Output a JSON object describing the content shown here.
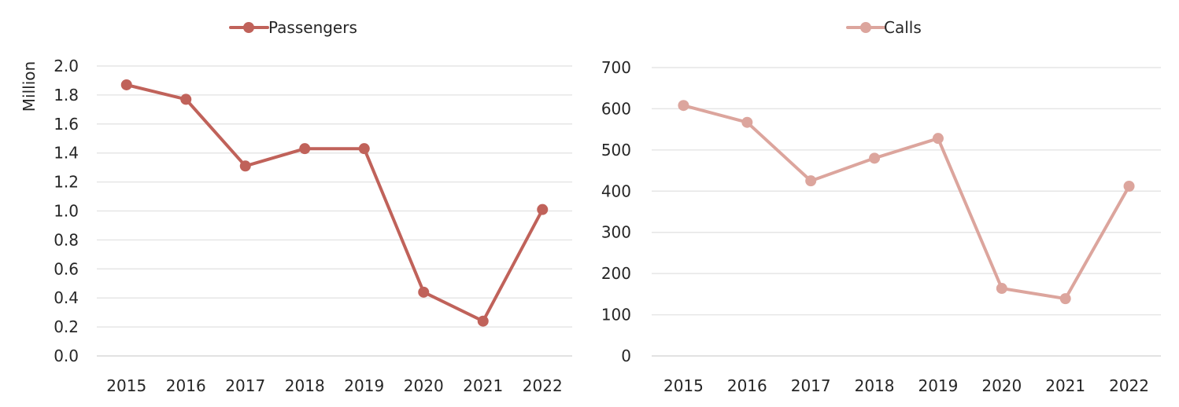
{
  "chart_data": [
    {
      "type": "line",
      "title": "",
      "xlabel": "",
      "ylabel": "Million",
      "categories": [
        "2015",
        "2016",
        "2017",
        "2018",
        "2019",
        "2020",
        "2021",
        "2022"
      ],
      "series": [
        {
          "name": "Passengers",
          "values": [
            1.87,
            1.77,
            1.31,
            1.43,
            1.43,
            0.44,
            0.24,
            1.01
          ]
        }
      ],
      "ylim": [
        0,
        2.0
      ],
      "yticks": [
        "0.0",
        "0.2",
        "0.4",
        "0.6",
        "0.8",
        "1.0",
        "1.2",
        "1.4",
        "1.6",
        "1.8",
        "2.0"
      ],
      "grid": true,
      "legend": "top-center",
      "color": "#c0625a"
    },
    {
      "type": "line",
      "title": "",
      "xlabel": "",
      "ylabel": "",
      "categories": [
        "2015",
        "2016",
        "2017",
        "2018",
        "2019",
        "2020",
        "2021",
        "2022"
      ],
      "series": [
        {
          "name": "Calls",
          "values": [
            608,
            567,
            425,
            480,
            528,
            164,
            139,
            412
          ]
        }
      ],
      "ylim": [
        0,
        700
      ],
      "yticks": [
        "0",
        "100",
        "200",
        "300",
        "400",
        "500",
        "600",
        "700"
      ],
      "grid": true,
      "legend": "top-center",
      "color": "#dca59d"
    }
  ]
}
